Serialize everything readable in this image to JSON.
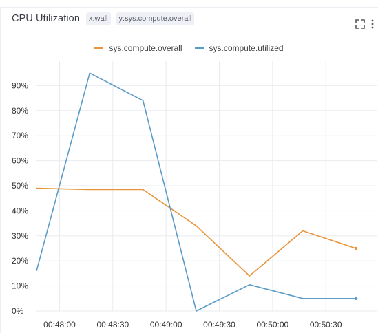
{
  "panel": {
    "title": "CPU Utilization",
    "tags": [
      "x:wall",
      "y:sys.compute.overall"
    ],
    "icons": [
      "fullscreen-icon",
      "more-vertical-icon"
    ]
  },
  "colors": {
    "overall": "#e8943a",
    "utilized": "#5b9bc7",
    "grid": "#e9ebef"
  },
  "chart_data": {
    "type": "line",
    "title": "CPU Utilization",
    "xlabel": "",
    "ylabel": "",
    "x_ticks": [
      "00:48:00",
      "00:48:30",
      "00:49:00",
      "00:49:30",
      "00:50:00",
      "00:50:30"
    ],
    "y_ticks": [
      "0%",
      "10%",
      "20%",
      "30%",
      "40%",
      "50%",
      "60%",
      "70%",
      "80%",
      "90%"
    ],
    "xlim": [
      "00:47:47",
      "00:50:47"
    ],
    "ylim": [
      0,
      100
    ],
    "grid": true,
    "legend_position": "top",
    "series": [
      {
        "name": "sys.compute.overall",
        "x": [
          "00:47:47",
          "00:48:17",
          "00:48:47",
          "00:49:17",
          "00:49:47",
          "00:50:17",
          "00:50:47"
        ],
        "values": [
          49,
          48.5,
          48.5,
          34,
          14,
          32,
          25
        ]
      },
      {
        "name": "sys.compute.utilized",
        "x": [
          "00:47:47",
          "00:48:17",
          "00:48:47",
          "00:49:17",
          "00:49:47",
          "00:50:17",
          "00:50:47"
        ],
        "values": [
          16,
          95,
          84,
          0,
          10.5,
          5,
          5
        ]
      }
    ]
  }
}
